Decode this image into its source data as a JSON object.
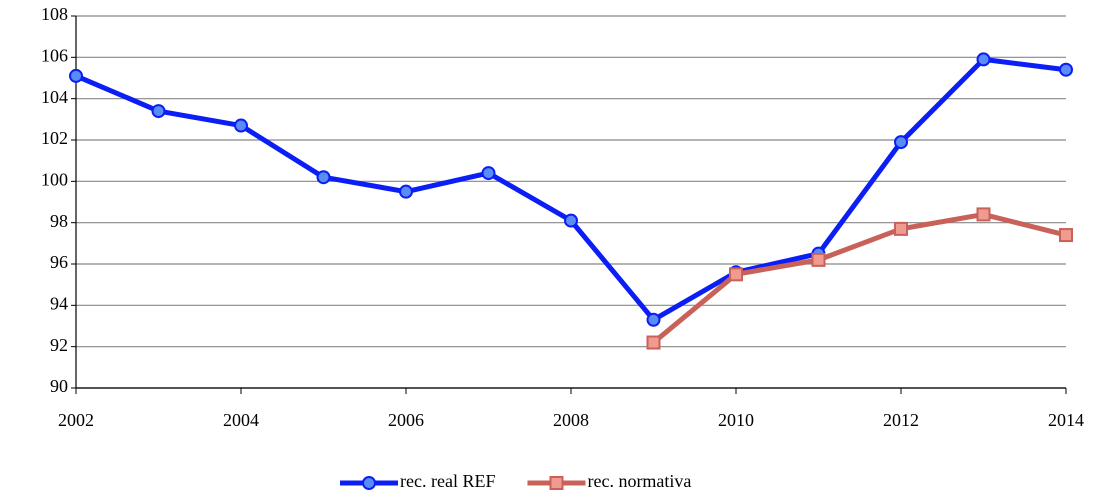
{
  "chart_data": {
    "type": "line",
    "x": [
      2002,
      2003,
      2004,
      2005,
      2006,
      2007,
      2008,
      2009,
      2010,
      2011,
      2012,
      2013,
      2014
    ],
    "series": [
      {
        "name": "rec. real REF",
        "color": "#0a1ef5",
        "marker": "circle",
        "values": [
          105.1,
          103.4,
          102.7,
          100.2,
          99.5,
          100.4,
          98.1,
          93.3,
          95.6,
          96.5,
          101.9,
          105.9,
          105.4
        ]
      },
      {
        "name": "rec. normativa",
        "color": "#c8615a",
        "marker": "square",
        "values": [
          null,
          null,
          null,
          null,
          null,
          null,
          null,
          92.2,
          95.5,
          96.2,
          97.7,
          98.4,
          97.4
        ]
      }
    ],
    "xlim": [
      2002,
      2014
    ],
    "xticks": [
      2002,
      2004,
      2006,
      2008,
      2010,
      2012,
      2014
    ],
    "ylim": [
      90,
      108
    ],
    "yticks": [
      90,
      92,
      94,
      96,
      98,
      100,
      102,
      104,
      106,
      108
    ],
    "grid": true,
    "legend": "bottom"
  }
}
